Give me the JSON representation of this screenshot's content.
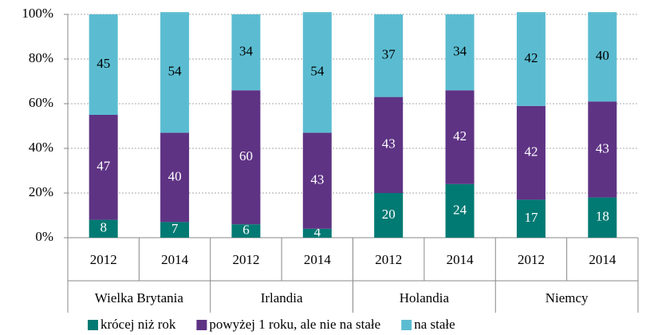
{
  "chart_data": {
    "type": "stacked_bar",
    "categories": [
      "2012",
      "2014",
      "2012",
      "2014",
      "2012",
      "2014",
      "2012",
      "2014"
    ],
    "groups": [
      "Wielka Brytania",
      "Irlandia",
      "Holandia",
      "Niemcy"
    ],
    "series": [
      {
        "name": "krócej niż rok",
        "color": "#007a73",
        "label_color": "#ffffff",
        "values": [
          8,
          7,
          6,
          4,
          20,
          24,
          17,
          18
        ]
      },
      {
        "name": "powyżej 1 roku, ale nie na stałe",
        "color": "#5e3384",
        "label_color": "#ffffff",
        "values": [
          47,
          40,
          60,
          43,
          43,
          42,
          42,
          43
        ]
      },
      {
        "name": "na stałe",
        "color": "#5bbcd1",
        "label_color": "#000000",
        "values": [
          45,
          54,
          34,
          54,
          37,
          34,
          42,
          40
        ]
      }
    ],
    "ylim": [
      0,
      100
    ],
    "yticks": [
      {
        "value": 0,
        "label": "0%"
      },
      {
        "value": 20,
        "label": "20%"
      },
      {
        "value": 40,
        "label": "40%"
      },
      {
        "value": 60,
        "label": "60%"
      },
      {
        "value": 80,
        "label": "80%"
      },
      {
        "value": 100,
        "label": "100%"
      }
    ],
    "grid": true
  }
}
